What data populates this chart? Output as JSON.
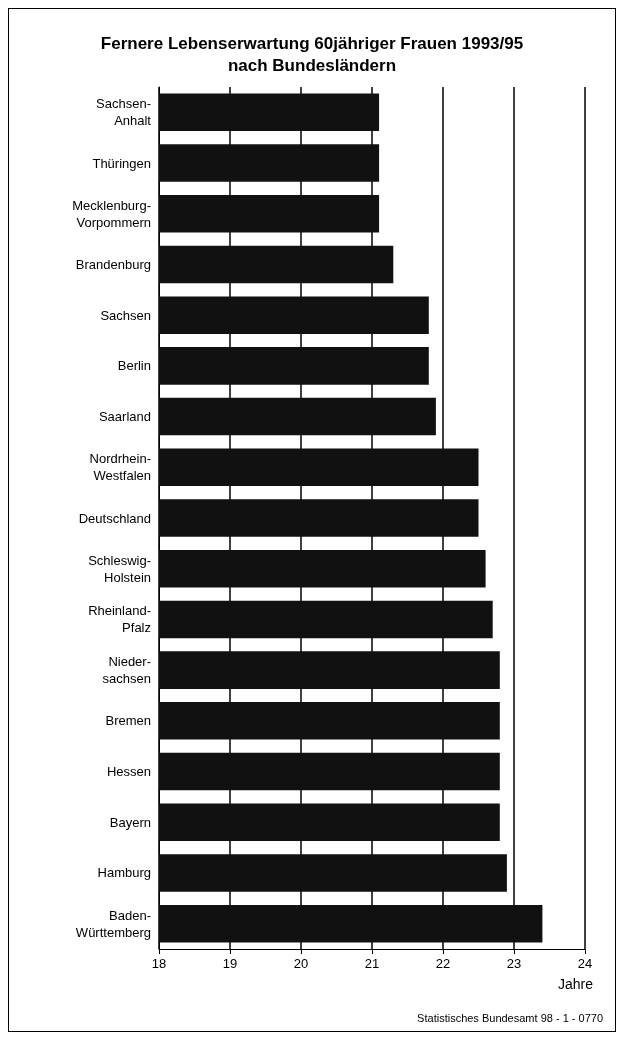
{
  "chart_data": {
    "type": "bar",
    "orientation": "horizontal",
    "title": "Fernere Lebenserwartung 60jähriger Frauen 1993/95\nnach Bundesländern",
    "categories": [
      "Sachsen-\nAnhalt",
      "Thüringen",
      "Mecklenburg-\nVorpommern",
      "Brandenburg",
      "Sachsen",
      "Berlin",
      "Saarland",
      "Nordrhein-\nWestfalen",
      "Deutschland",
      "Schleswig-\nHolstein",
      "Rheinland-\nPfalz",
      "Nieder-\nsachsen",
      "Bremen",
      "Hessen",
      "Bayern",
      "Hamburg",
      "Baden-\nWürttemberg"
    ],
    "values": [
      21.1,
      21.1,
      21.1,
      21.3,
      21.8,
      21.8,
      21.9,
      22.5,
      22.5,
      22.6,
      22.7,
      22.8,
      22.8,
      22.8,
      22.8,
      22.9,
      23.4
    ],
    "color": "#111111",
    "xlabel": "Jahre",
    "xlim": [
      18,
      24
    ],
    "xticks": [
      18,
      19,
      20,
      21,
      22,
      23,
      24
    ],
    "grid": "x",
    "annotations": [
      "Statistisches Bundesamt 98 - 1 - 0770"
    ]
  }
}
